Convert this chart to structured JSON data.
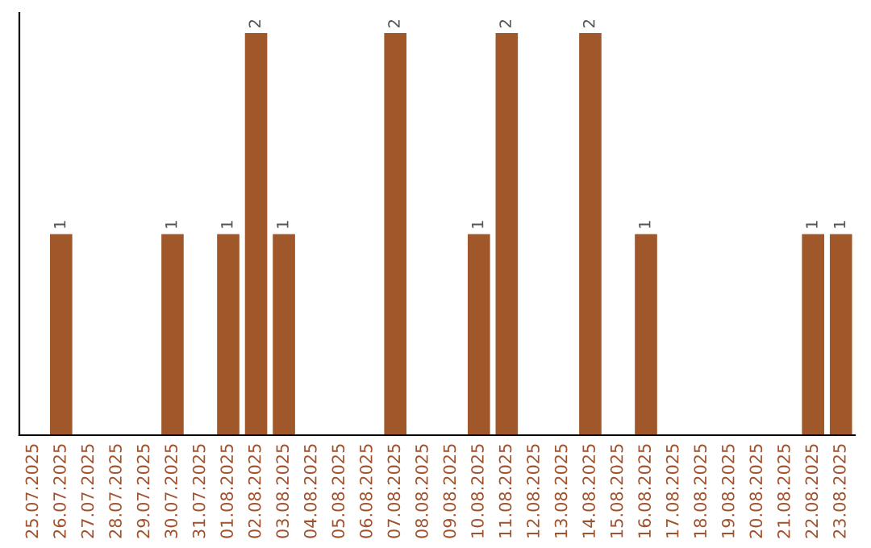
{
  "chart_data": {
    "type": "bar",
    "categories": [
      "25.07.2025",
      "26.07.2025",
      "27.07.2025",
      "28.07.2025",
      "29.07.2025",
      "30.07.2025",
      "31.07.2025",
      "01.08.2025",
      "02.08.2025",
      "03.08.2025",
      "04.08.2025",
      "05.08.2025",
      "06.08.2025",
      "07.08.2025",
      "08.08.2025",
      "09.08.2025",
      "10.08.2025",
      "11.08.2025",
      "12.08.2025",
      "13.08.2025",
      "14.08.2025",
      "15.08.2025",
      "16.08.2025",
      "17.08.2025",
      "18.08.2025",
      "19.08.2025",
      "20.08.2025",
      "21.08.2025",
      "22.08.2025",
      "23.08.2025"
    ],
    "values": [
      0,
      1,
      0,
      0,
      0,
      1,
      0,
      1,
      2,
      1,
      0,
      0,
      0,
      2,
      0,
      0,
      1,
      2,
      0,
      0,
      2,
      0,
      1,
      0,
      0,
      0,
      0,
      0,
      1,
      1
    ],
    "color": "#a0582a",
    "value_labels": [
      null,
      "1",
      null,
      null,
      null,
      "1",
      null,
      "1",
      "2",
      "1",
      null,
      null,
      null,
      "2",
      null,
      null,
      "1",
      "2",
      null,
      null,
      "2",
      null,
      "1",
      null,
      null,
      null,
      null,
      null,
      "1",
      "1"
    ],
    "tick_labels": "x",
    "grid": false,
    "legend": false
  }
}
